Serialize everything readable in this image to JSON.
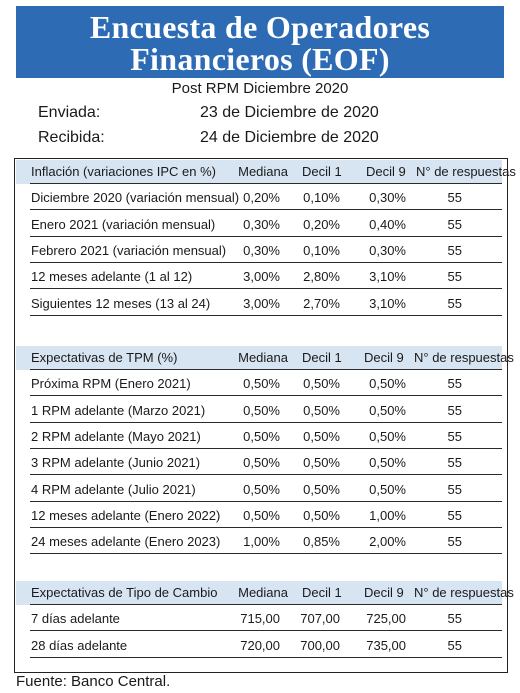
{
  "title": {
    "line1": "Encuesta de Operadores",
    "line2": "Financieros (EOF)"
  },
  "subtitle": "Post RPM Diciembre 2020",
  "meta": {
    "sent_label": "Enviada:",
    "sent_value": "23 de Diciembre de 2020",
    "received_label": "Recibida:",
    "received_value": "24 de Diciembre de 2020"
  },
  "sections": [
    {
      "header": {
        "label": "Inflación (variaciones IPC en %)",
        "c1": "Mediana",
        "c2": "Decil 1",
        "c3": "Decil 9",
        "c4": "N° de respuestas"
      },
      "rows": [
        {
          "label": "Diciembre 2020 (variación mensual)",
          "c1": "0,20%",
          "c2": "0,10%",
          "c3": "0,30%",
          "c4": "55"
        },
        {
          "label": "Enero 2021 (variación mensual)",
          "c1": "0,30%",
          "c2": "0,20%",
          "c3": "0,40%",
          "c4": "55"
        },
        {
          "label": "Febrero 2021 (variación mensual)",
          "c1": "0,30%",
          "c2": "0,10%",
          "c3": "0,30%",
          "c4": "55"
        },
        {
          "label": "12 meses adelante (1 al 12)",
          "c1": "3,00%",
          "c2": "2,80%",
          "c3": "3,10%",
          "c4": "55"
        },
        {
          "label": "Siguientes 12 meses (13 al 24)",
          "c1": "3,00%",
          "c2": "2,70%",
          "c3": "3,10%",
          "c4": "55"
        }
      ]
    },
    {
      "header": {
        "label": "Expectativas de TPM (%)",
        "c1": "Mediana",
        "c2": "Decil 1",
        "c3": "Decil 9",
        "c4": "N° de respuestas"
      },
      "rows": [
        {
          "label": "Próxima RPM (Enero 2021)",
          "c1": "0,50%",
          "c2": "0,50%",
          "c3": "0,50%",
          "c4": "55"
        },
        {
          "label": "1 RPM adelante (Marzo 2021)",
          "c1": "0,50%",
          "c2": "0,50%",
          "c3": "0,50%",
          "c4": "55"
        },
        {
          "label": "2 RPM adelante (Mayo 2021)",
          "c1": "0,50%",
          "c2": "0,50%",
          "c3": "0,50%",
          "c4": "55"
        },
        {
          "label": "3 RPM adelante (Junio 2021)",
          "c1": "0,50%",
          "c2": "0,50%",
          "c3": "0,50%",
          "c4": "55"
        },
        {
          "label": "4 RPM adelante (Julio 2021)",
          "c1": "0,50%",
          "c2": "0,50%",
          "c3": "0,50%",
          "c4": "55"
        },
        {
          "label": "12 meses adelante (Enero 2022)",
          "c1": "0,50%",
          "c2": "0,50%",
          "c3": "1,00%",
          "c4": "55"
        },
        {
          "label": "24 meses adelante (Enero 2023)",
          "c1": "1,00%",
          "c2": "0,85%",
          "c3": "2,00%",
          "c4": "55"
        }
      ]
    },
    {
      "header": {
        "label": "Expectativas de Tipo de Cambio",
        "c1": "Mediana",
        "c2": "Decil 1",
        "c3": "Decil 9",
        "c4": "N° de respuestas"
      },
      "rows": [
        {
          "label": "7 días adelante",
          "c1": "715,00",
          "c2": "707,00",
          "c3": "725,00",
          "c4": "55"
        },
        {
          "label": "28 días adelante",
          "c1": "720,00",
          "c2": "700,00",
          "c3": "735,00",
          "c4": "55"
        }
      ]
    }
  ],
  "footer": "Fuente: Banco Central.",
  "colors": {
    "title_bg": "#2d6cb5",
    "header_bg": "#d7e5f3"
  }
}
